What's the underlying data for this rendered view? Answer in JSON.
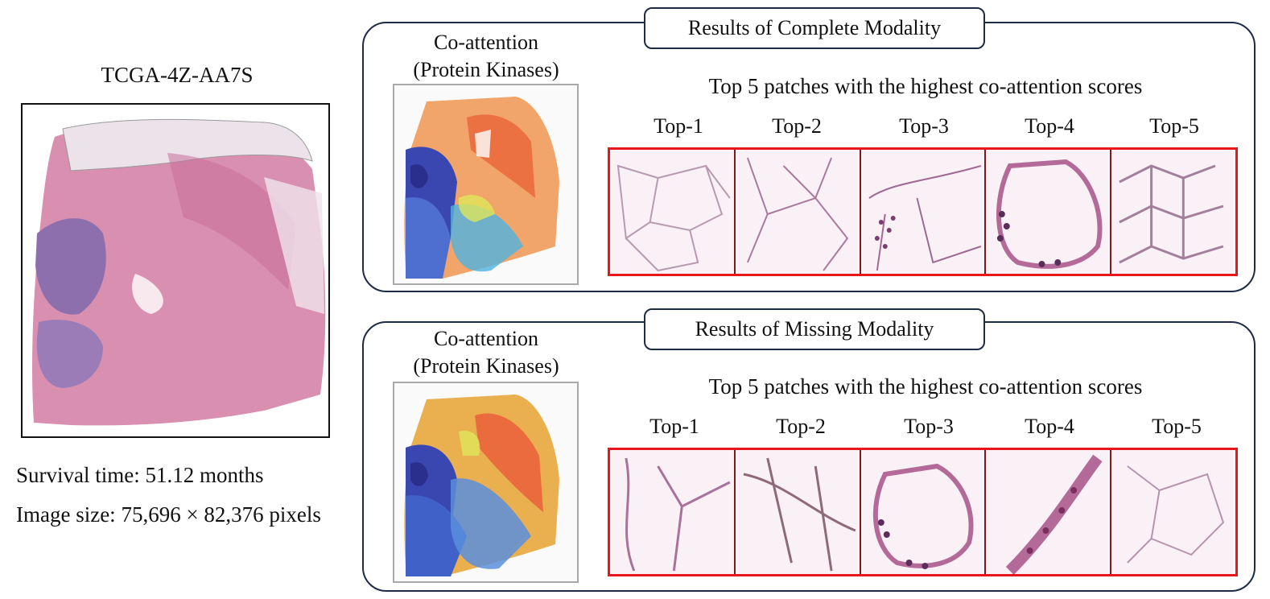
{
  "case": {
    "id": "TCGA-4Z-AA7S",
    "survival_line": "Survival time: 51.12 months",
    "size_line": "Image size: 75,696 × 82,376 pixels"
  },
  "panels": [
    {
      "title": "Results of Complete Modality",
      "coatt_line1": "Co-attention",
      "coatt_line2": "(Protein Kinases)",
      "caption": "Top 5 patches with the highest co-attention scores",
      "patch_labels": [
        "Top-1",
        "Top-2",
        "Top-3",
        "Top-4",
        "Top-5"
      ]
    },
    {
      "title": "Results of Missing Modality",
      "coatt_line1": "Co-attention",
      "coatt_line2": "(Protein Kinases)",
      "caption": "Top 5 patches with the highest co-attention scores",
      "patch_labels": [
        "Top-1",
        "Top-2",
        "Top-3",
        "Top-4",
        "Top-5"
      ]
    }
  ],
  "colors": {
    "panel_border": "#1d2b45",
    "patch_border": "#e8161b",
    "tissue_pink": "#d98fb0",
    "tissue_purple": "#8e6fae"
  }
}
